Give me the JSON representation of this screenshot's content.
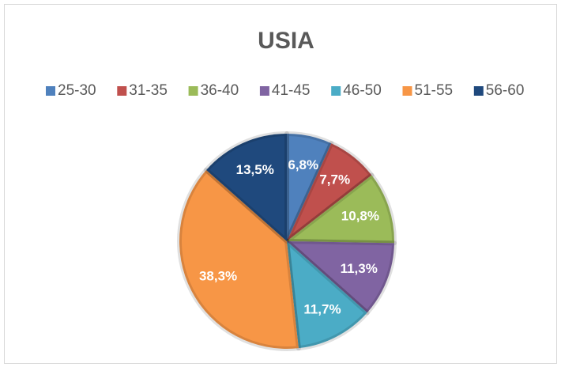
{
  "chart_data": {
    "type": "pie",
    "title": "USIA",
    "categories": [
      "25-30",
      "31-35",
      "36-40",
      "41-45",
      "46-50",
      "51-55",
      "56-60"
    ],
    "values": [
      6.8,
      7.7,
      10.8,
      11.3,
      11.7,
      38.3,
      13.5
    ],
    "value_labels": [
      "6,8%",
      "7,7%",
      "10,8%",
      "11,3%",
      "11,7%",
      "38,3%",
      "13,5%"
    ],
    "colors": [
      "#4f81bd",
      "#c0504d",
      "#9bbb59",
      "#8064a2",
      "#4bacc6",
      "#f79646",
      "#1f497d"
    ],
    "legend": "top"
  }
}
